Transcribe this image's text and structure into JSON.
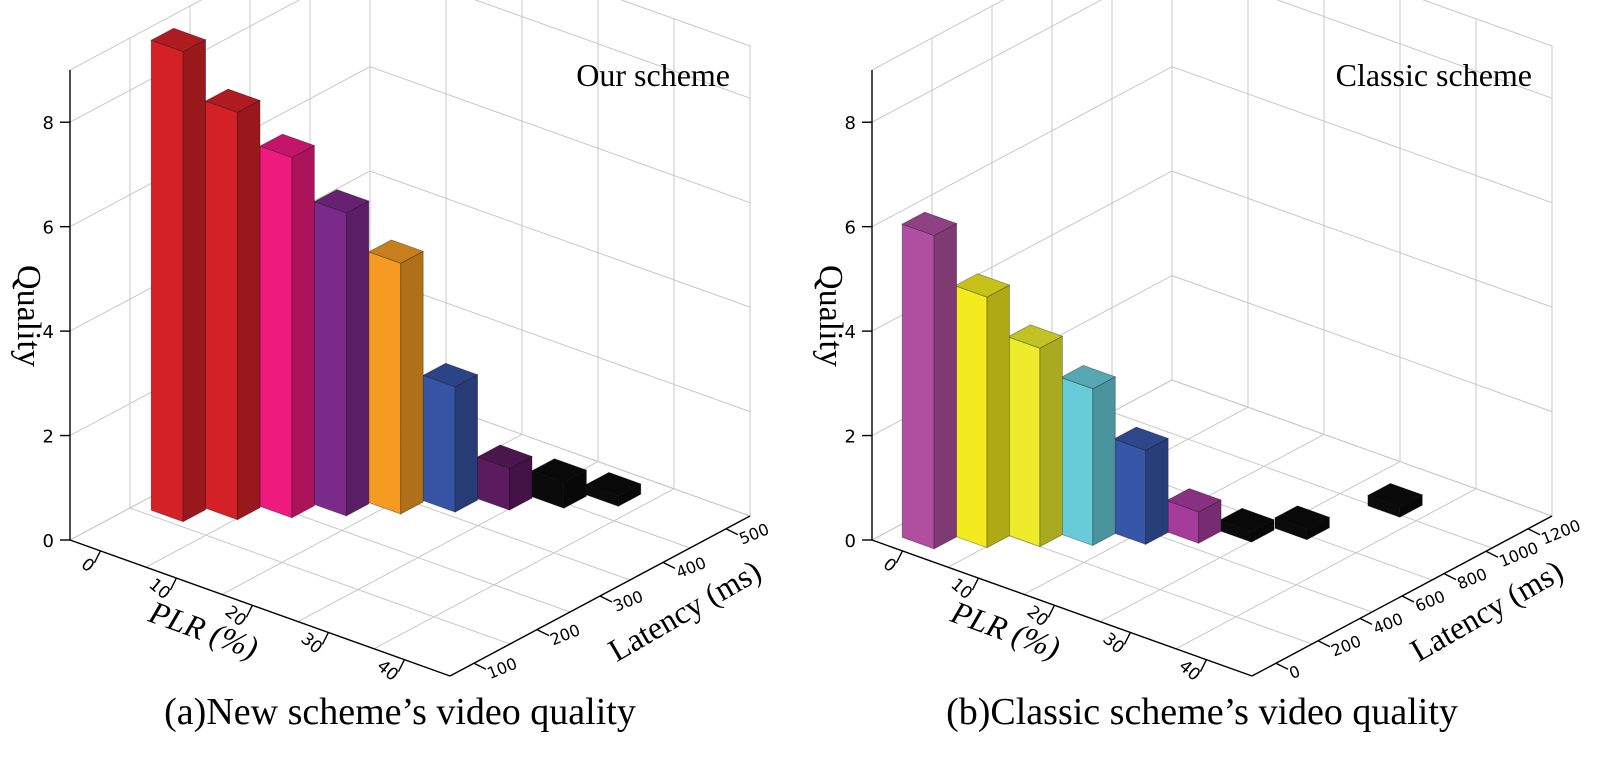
{
  "chart_data": [
    {
      "type": "bar",
      "annotation": "Our scheme",
      "caption": "(a)New scheme’s video quality",
      "zlabel": "Quality",
      "xlabel": "PLR (%)",
      "ylabel": "Latency (ms)",
      "zticks": [
        "0",
        "2",
        "4",
        "6",
        "8"
      ],
      "xticks": [
        "0",
        "10",
        "20",
        "30",
        "40"
      ],
      "yticks": [
        "100",
        "200",
        "300",
        "400",
        "500"
      ],
      "zlim": [
        0,
        9
      ],
      "grid": true,
      "bars": [
        {
          "plr": 2,
          "latency": 110,
          "value": 9.0,
          "color": "#d42127"
        },
        {
          "plr": 6,
          "latency": 150,
          "value": 7.8,
          "color": "#d42127"
        },
        {
          "plr": 10,
          "latency": 190,
          "value": 6.9,
          "color": "#ee1a7e"
        },
        {
          "plr": 14,
          "latency": 230,
          "value": 5.8,
          "color": "#7c2a8a"
        },
        {
          "plr": 18,
          "latency": 270,
          "value": 4.8,
          "color": "#f59a23"
        },
        {
          "plr": 22,
          "latency": 310,
          "value": 2.4,
          "color": "#3653a4"
        },
        {
          "plr": 26,
          "latency": 350,
          "value": 0.8,
          "color": "#5b1b5e"
        },
        {
          "plr": 30,
          "latency": 390,
          "value": 0.5,
          "color": "#0b0b0b"
        },
        {
          "plr": 34,
          "latency": 430,
          "value": 0.2,
          "color": "#0b0b0b"
        }
      ]
    },
    {
      "type": "bar",
      "annotation": "Classic scheme",
      "caption": "(b)Classic scheme’s video quality",
      "zlabel": "Quality",
      "xlabel": "PLR (%)",
      "ylabel": "Latency (ms)",
      "zticks": [
        "0",
        "2",
        "4",
        "6",
        "8"
      ],
      "xticks": [
        "0",
        "10",
        "20",
        "30",
        "40"
      ],
      "yticks": [
        "0",
        "200",
        "400",
        "600",
        "800",
        "1000",
        "1200"
      ],
      "zlim": [
        0,
        9
      ],
      "grid": true,
      "bars": [
        {
          "plr": 2,
          "latency": 60,
          "value": 6.0,
          "color": "#b04fa0"
        },
        {
          "plr": 6,
          "latency": 150,
          "value": 4.8,
          "color": "#f3eb1f"
        },
        {
          "plr": 10,
          "latency": 240,
          "value": 3.8,
          "color": "#ecec2c"
        },
        {
          "plr": 14,
          "latency": 330,
          "value": 3.0,
          "color": "#68ccd8"
        },
        {
          "plr": 18,
          "latency": 420,
          "value": 1.8,
          "color": "#3856a8"
        },
        {
          "plr": 22,
          "latency": 510,
          "value": 0.6,
          "color": "#a53c9c"
        },
        {
          "plr": 26,
          "latency": 600,
          "value": 0.2,
          "color": "#0b0b0b"
        },
        {
          "plr": 30,
          "latency": 700,
          "value": 0.2,
          "color": "#0b0b0b"
        },
        {
          "plr": 34,
          "latency": 950,
          "value": 0.2,
          "color": "#0b0b0b"
        }
      ]
    }
  ]
}
